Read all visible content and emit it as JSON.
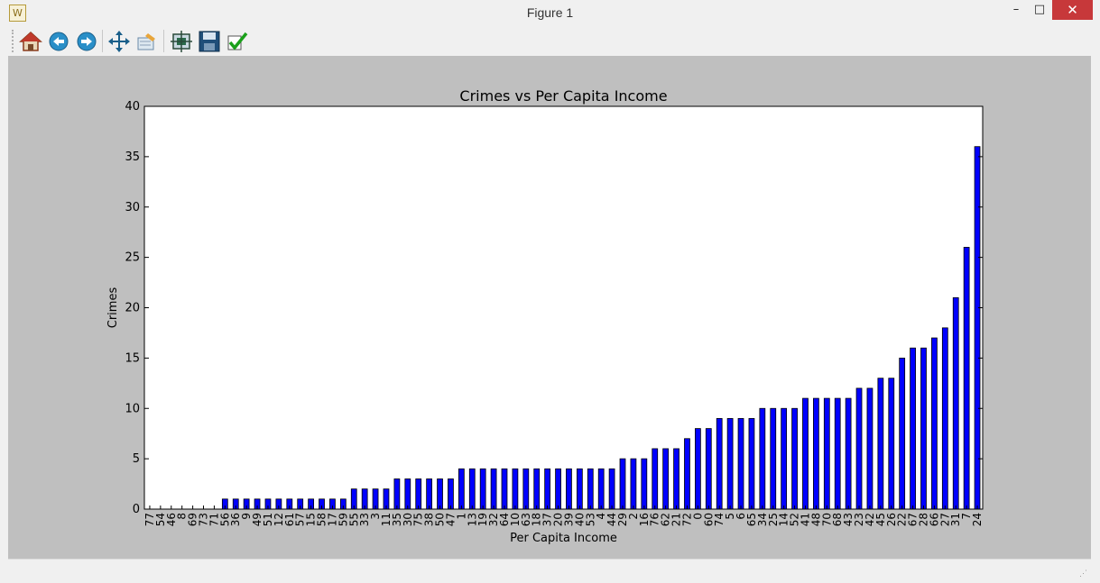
{
  "window": {
    "title": "Figure 1",
    "icon": "matplotlib-app-icon",
    "minimize_glyph": "–",
    "maximize_glyph": "□",
    "close_glyph": "✕"
  },
  "toolbar": {
    "buttons": [
      {
        "name": "home",
        "icon": "home-icon"
      },
      {
        "name": "back",
        "icon": "back-arrow-icon"
      },
      {
        "name": "forward",
        "icon": "forward-arrow-icon"
      },
      {
        "name": "pan",
        "icon": "pan-move-icon"
      },
      {
        "name": "zoom",
        "icon": "zoom-rect-icon"
      },
      {
        "name": "subplots",
        "icon": "configure-subplots-icon"
      },
      {
        "name": "save",
        "icon": "save-floppy-icon"
      },
      {
        "name": "edit",
        "icon": "edit-checkmark-icon"
      }
    ]
  },
  "colors": {
    "bar": "#0000ff",
    "axes_bg": "#ffffff",
    "figure_bg": "#bfbfbf"
  },
  "chart_data": {
    "type": "bar",
    "title": "Crimes vs Per Capita Income",
    "xlabel": "Per Capita Income",
    "ylabel": "Crimes",
    "ylim": [
      0,
      40
    ],
    "yticks": [
      0,
      5,
      10,
      15,
      20,
      25,
      30,
      35,
      40
    ],
    "grid": false,
    "categories": [
      "77",
      "54",
      "46",
      "8",
      "69",
      "73",
      "71",
      "56",
      "36",
      "9",
      "49",
      "51",
      "12",
      "61",
      "57",
      "15",
      "58",
      "17",
      "59",
      "55",
      "33",
      "3",
      "11",
      "35",
      "30",
      "75",
      "38",
      "50",
      "47",
      "1",
      "13",
      "19",
      "32",
      "64",
      "10",
      "63",
      "18",
      "37",
      "20",
      "39",
      "40",
      "53",
      "4",
      "44",
      "29",
      "2",
      "16",
      "76",
      "62",
      "21",
      "72",
      "0",
      "60",
      "74",
      "5",
      "6",
      "65",
      "34",
      "25",
      "14",
      "52",
      "41",
      "48",
      "70",
      "68",
      "43",
      "23",
      "42",
      "45",
      "26",
      "22",
      "67",
      "28",
      "66",
      "27",
      "31",
      "7",
      "24"
    ],
    "values": [
      0,
      0,
      0,
      0,
      0,
      0,
      0,
      1,
      1,
      1,
      1,
      1,
      1,
      1,
      1,
      1,
      1,
      1,
      1,
      2,
      2,
      2,
      2,
      3,
      3,
      3,
      3,
      3,
      3,
      4,
      4,
      4,
      4,
      4,
      4,
      4,
      4,
      4,
      4,
      4,
      4,
      4,
      4,
      4,
      5,
      5,
      5,
      6,
      6,
      6,
      7,
      8,
      8,
      9,
      9,
      9,
      9,
      10,
      10,
      10,
      10,
      11,
      11,
      11,
      11,
      11,
      12,
      12,
      13,
      13,
      15,
      16,
      16,
      17,
      18,
      21,
      26,
      36
    ]
  }
}
